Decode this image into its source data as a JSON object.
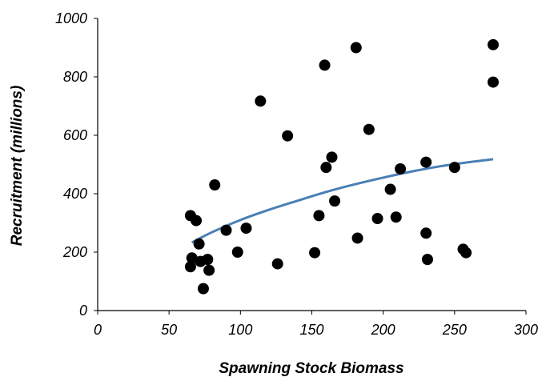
{
  "chart_data": {
    "type": "scatter",
    "title": "",
    "xlabel": "Spawning Stock Biomass",
    "ylabel": "Recruitment (millions)",
    "xlim": [
      0,
      300
    ],
    "ylim": [
      0,
      1000
    ],
    "x_ticks": [
      0,
      50,
      100,
      150,
      200,
      250,
      300
    ],
    "y_ticks": [
      0,
      200,
      400,
      600,
      800,
      1000
    ],
    "x_tick_labels": [
      "0",
      "50",
      "100",
      "150",
      "200",
      "250",
      "300"
    ],
    "y_tick_labels": [
      "0",
      "200",
      "400",
      "600",
      "800",
      "1000"
    ],
    "grid": false,
    "legend": "none",
    "series": [
      {
        "type": "scatter",
        "color": "#000000",
        "points": [
          [
            65,
            325
          ],
          [
            65,
            150
          ],
          [
            66,
            180
          ],
          [
            69,
            308
          ],
          [
            71,
            228
          ],
          [
            72,
            168
          ],
          [
            74,
            75
          ],
          [
            77,
            175
          ],
          [
            78,
            138
          ],
          [
            82,
            430
          ],
          [
            90,
            275
          ],
          [
            98,
            200
          ],
          [
            104,
            282
          ],
          [
            114,
            717
          ],
          [
            126,
            160
          ],
          [
            133,
            598
          ],
          [
            152,
            198
          ],
          [
            155,
            325
          ],
          [
            159,
            840
          ],
          [
            160,
            490
          ],
          [
            164,
            525
          ],
          [
            166,
            375
          ],
          [
            181,
            900
          ],
          [
            182,
            248
          ],
          [
            190,
            620
          ],
          [
            196,
            315
          ],
          [
            205,
            415
          ],
          [
            209,
            320
          ],
          [
            212,
            485
          ],
          [
            230,
            508
          ],
          [
            230,
            265
          ],
          [
            231,
            175
          ],
          [
            250,
            490
          ],
          [
            256,
            210
          ],
          [
            258,
            198
          ],
          [
            277,
            910
          ],
          [
            277,
            782
          ]
        ]
      },
      {
        "type": "line",
        "color": "#4a7fb5",
        "points": [
          [
            66,
            233
          ],
          [
            80,
            268
          ],
          [
            100,
            310
          ],
          [
            120,
            345
          ],
          [
            140,
            376
          ],
          [
            160,
            406
          ],
          [
            180,
            432
          ],
          [
            200,
            455
          ],
          [
            220,
            476
          ],
          [
            240,
            494
          ],
          [
            260,
            508
          ],
          [
            277,
            518
          ]
        ]
      }
    ]
  }
}
